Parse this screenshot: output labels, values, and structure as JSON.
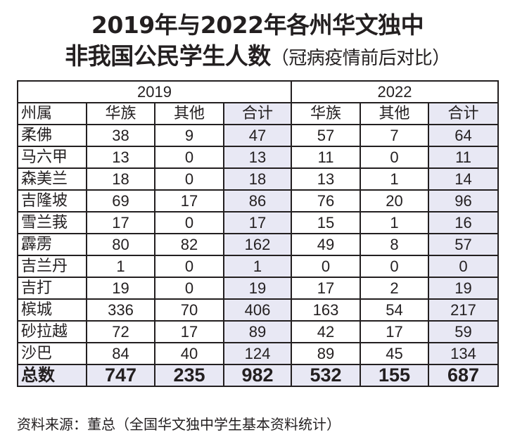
{
  "title": {
    "line1": "2019年与2022年各州华文独中",
    "line2_main": "非我国公民学生人数",
    "line2_paren": "（冠病疫情前后对比）"
  },
  "table": {
    "years": [
      "2019",
      "2022"
    ],
    "columns": {
      "state": "州属",
      "chinese": "华族",
      "others": "其他",
      "total": "合计"
    },
    "rows": [
      {
        "state": "柔佛",
        "y2019": {
          "chinese": "38",
          "others": "9",
          "total": "47"
        },
        "y2022": {
          "chinese": "57",
          "others": "7",
          "total": "64"
        }
      },
      {
        "state": "马六甲",
        "y2019": {
          "chinese": "13",
          "others": "0",
          "total": "13"
        },
        "y2022": {
          "chinese": "11",
          "others": "0",
          "total": "11"
        }
      },
      {
        "state": "森美兰",
        "y2019": {
          "chinese": "18",
          "others": "0",
          "total": "18"
        },
        "y2022": {
          "chinese": "13",
          "others": "1",
          "total": "14"
        }
      },
      {
        "state": "吉隆坡",
        "y2019": {
          "chinese": "69",
          "others": "17",
          "total": "86"
        },
        "y2022": {
          "chinese": "76",
          "others": "20",
          "total": "96"
        }
      },
      {
        "state": "雪兰莪",
        "y2019": {
          "chinese": "17",
          "others": "0",
          "total": "17"
        },
        "y2022": {
          "chinese": "15",
          "others": "1",
          "total": "16"
        }
      },
      {
        "state": "霹雳",
        "y2019": {
          "chinese": "80",
          "others": "82",
          "total": "162"
        },
        "y2022": {
          "chinese": "49",
          "others": "8",
          "total": "57"
        }
      },
      {
        "state": "吉兰丹",
        "y2019": {
          "chinese": "1",
          "others": "0",
          "total": "1"
        },
        "y2022": {
          "chinese": "0",
          "others": "0",
          "total": "0"
        }
      },
      {
        "state": "吉打",
        "y2019": {
          "chinese": "19",
          "others": "0",
          "total": "19"
        },
        "y2022": {
          "chinese": "17",
          "others": "2",
          "total": "19"
        }
      },
      {
        "state": "槟城",
        "y2019": {
          "chinese": "336",
          "others": "70",
          "total": "406"
        },
        "y2022": {
          "chinese": "163",
          "others": "54",
          "total": "217"
        }
      },
      {
        "state": "砂拉越",
        "y2019": {
          "chinese": "72",
          "others": "17",
          "total": "89"
        },
        "y2022": {
          "chinese": "42",
          "others": "17",
          "total": "59"
        }
      },
      {
        "state": "沙巴",
        "y2019": {
          "chinese": "84",
          "others": "40",
          "total": "124"
        },
        "y2022": {
          "chinese": "89",
          "others": "45",
          "total": "134"
        }
      }
    ],
    "totals": {
      "label": "总数",
      "y2019": {
        "chinese": "747",
        "others": "235",
        "total": "982"
      },
      "y2022": {
        "chinese": "532",
        "others": "155",
        "total": "687"
      }
    }
  },
  "source": "资料来源：董总（全国华文独中学生基本资料统计）",
  "colors": {
    "text": "#231f20",
    "border": "#231f20",
    "highlight": "#e8e8f4",
    "background": "#ffffff"
  }
}
